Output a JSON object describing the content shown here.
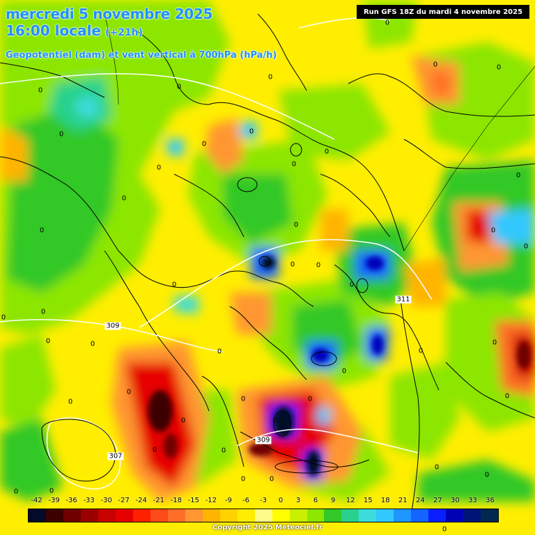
{
  "header": {
    "date_line": "mercredi 5 novembre 2025",
    "time_line": "16:00 locale",
    "offset": "(+21h)",
    "variable": "Geopotentiel (dam) et vent vertical à 700hPa (hPa/h)",
    "run": "Run GFS 18Z du mardi 4 novembre 2025"
  },
  "legend": {
    "ticks": [
      "-42",
      "-39",
      "-36",
      "-33",
      "-30",
      "-27",
      "-24",
      "-21",
      "-18",
      "-15",
      "-12",
      "-9",
      "-6",
      "-3",
      "0",
      "3",
      "6",
      "9",
      "12",
      "15",
      "18",
      "21",
      "24",
      "27",
      "30",
      "33",
      "36"
    ],
    "colors": [
      "#050a28",
      "#3c0000",
      "#6e0000",
      "#9b0000",
      "#c80000",
      "#e60000",
      "#ff2000",
      "#ff4a1a",
      "#ff6e28",
      "#ff9632",
      "#ffb400",
      "#ffd200",
      "#ffee00",
      "#fffc8c",
      "#ffff00",
      "#c8f000",
      "#8ce600",
      "#32c828",
      "#28d28c",
      "#3cdcdc",
      "#32c8ff",
      "#1e96ff",
      "#1464ff",
      "#0a1eff",
      "#0000b4",
      "#001478",
      "#002850"
    ]
  },
  "contours": [
    {
      "label": "309"
    },
    {
      "label": "309"
    },
    {
      "label": "307"
    },
    {
      "label": "311"
    }
  ],
  "zero_label": "0",
  "copyright": "Copyright 2025 Meteociel.fr"
}
